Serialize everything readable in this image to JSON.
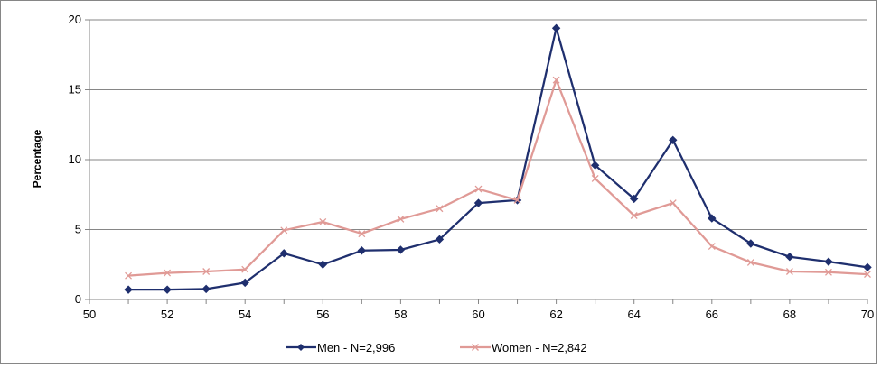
{
  "chart_data": {
    "type": "line",
    "ylabel": "Percentage",
    "xlim": [
      50,
      70
    ],
    "ylim": [
      0,
      20
    ],
    "x_ticks": [
      50,
      52,
      54,
      56,
      58,
      60,
      62,
      64,
      66,
      68,
      70
    ],
    "y_ticks": [
      0,
      5,
      10,
      15,
      20
    ],
    "grid": "horizontal",
    "legend_position": "bottom",
    "x": [
      51,
      52,
      53,
      54,
      55,
      56,
      57,
      58,
      59,
      60,
      61,
      62,
      63,
      64,
      65,
      66,
      67,
      68,
      69,
      70
    ],
    "series": [
      {
        "name": "Men - N=2,996",
        "color": "#1f2f6e",
        "marker": "diamond",
        "values": [
          0.7,
          0.7,
          0.75,
          1.2,
          3.3,
          2.5,
          3.5,
          3.55,
          4.3,
          6.9,
          7.1,
          19.4,
          9.6,
          7.2,
          11.4,
          5.8,
          4.0,
          3.05,
          2.7,
          2.3
        ]
      },
      {
        "name": "Women - N=2,842",
        "color": "#e09a96",
        "marker": "x",
        "values": [
          1.7,
          1.9,
          2.0,
          2.15,
          4.95,
          5.55,
          4.7,
          5.75,
          6.5,
          7.9,
          7.1,
          15.7,
          8.65,
          6.0,
          6.9,
          3.8,
          2.65,
          2.0,
          1.95,
          1.8
        ]
      }
    ]
  }
}
